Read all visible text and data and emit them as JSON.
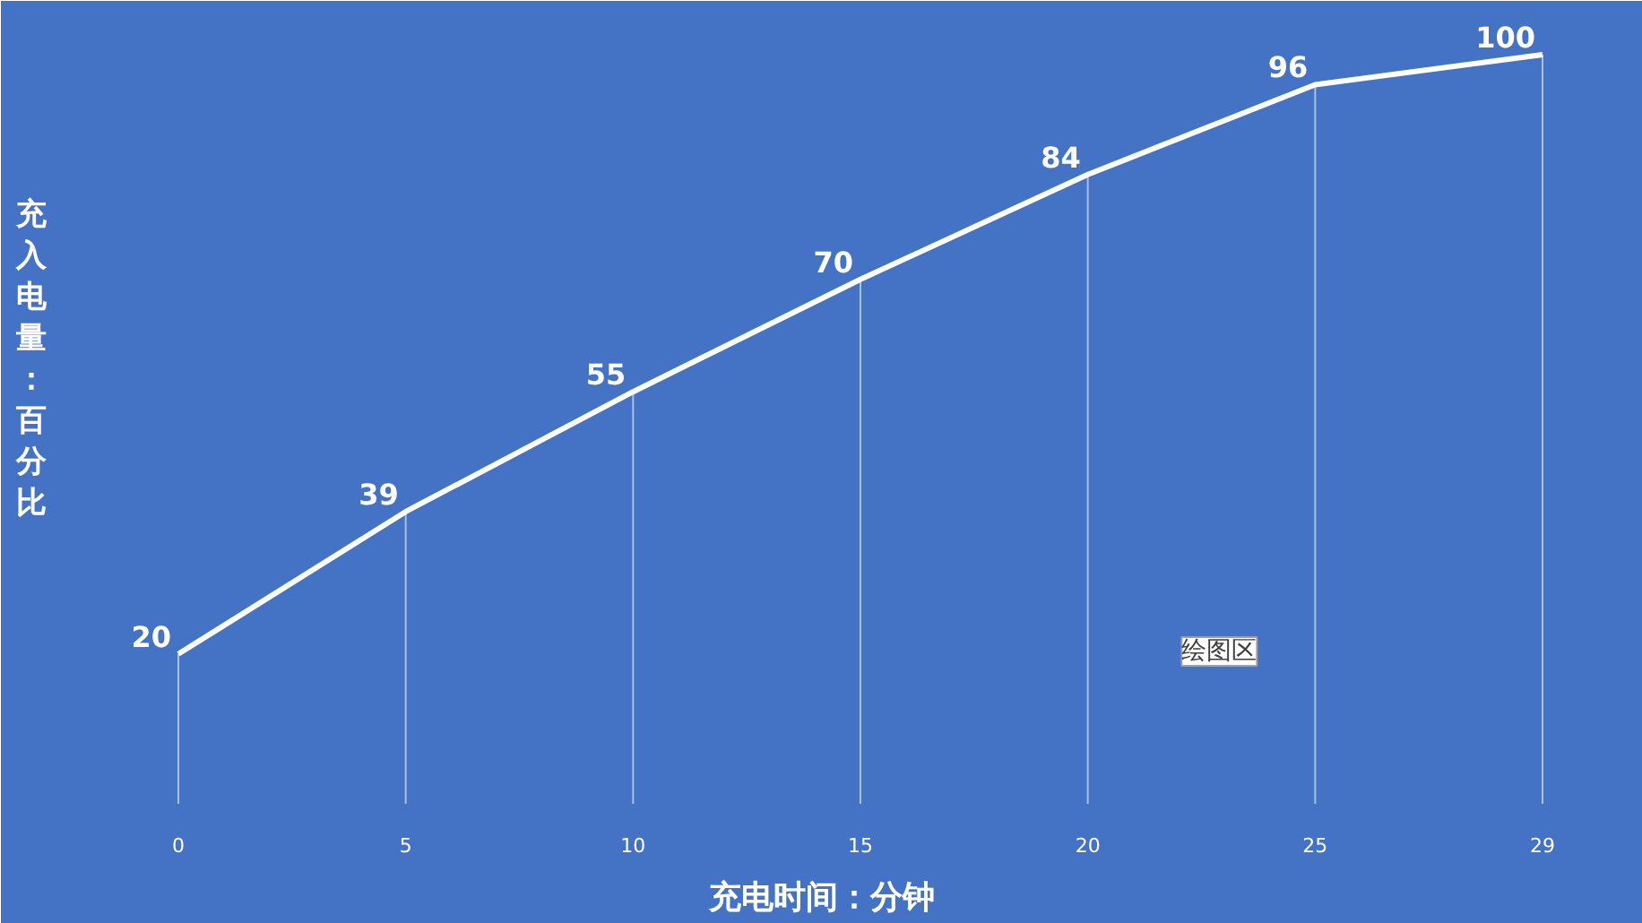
{
  "chart_data": {
    "type": "line",
    "xlabel": "充电时间：分钟",
    "ylabel": "充入电量：百分比",
    "categories": [
      "0",
      "5",
      "10",
      "15",
      "20",
      "25",
      "29"
    ],
    "series": [
      {
        "color": "#ffffff",
        "values": [
          20,
          39,
          55,
          70,
          84,
          96,
          100
        ]
      }
    ],
    "data_labels": true,
    "tick_labels": "x",
    "marker": "none",
    "grid": "x",
    "line_style": "solid",
    "annotations": [
      "绘图区"
    ]
  }
}
